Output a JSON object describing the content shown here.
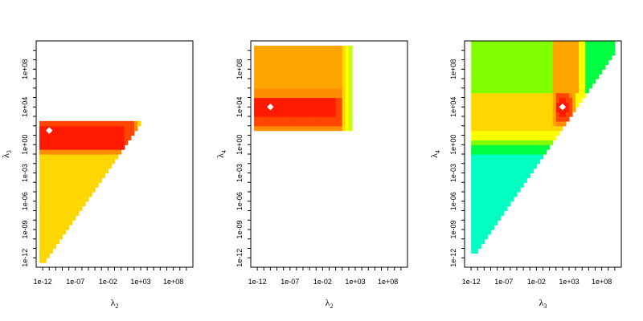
{
  "chart_data": [
    {
      "type": "heatmap",
      "title": "",
      "xlabel": "λ2",
      "ylabel": "λ3",
      "x_scale": "log10",
      "y_scale": "log10",
      "xlim": [
        1e-13,
        100000000000.0
      ],
      "ylim": [
        1e-13,
        100000000000.0
      ],
      "x_ticks": [
        "1e-12",
        "1e-07",
        "1e-02",
        "1e+03",
        "1e+08"
      ],
      "y_ticks": [
        "1e-12",
        "1e-09",
        "1e-06",
        "1e-03",
        "1e+00",
        "1e+04",
        "1e+08"
      ],
      "x_tick_values": [
        1e-12,
        1e-07,
        0.01,
        1000.0,
        100000000.0
      ],
      "y_tick_values": [
        1e-12,
        1e-09,
        1e-06,
        0.001,
        1.0,
        10000.0,
        100000000.0
      ],
      "optimum": {
        "x": 1e-11,
        "y": 31.6
      },
      "optimum_color": "#ffffff",
      "colors": [
        "#ff1a00",
        "#ff4500",
        "#ff8c00",
        "#ffa500",
        "#ffd700",
        "#ffff00",
        "#c8ff00",
        "#80ff00"
      ]
    },
    {
      "type": "heatmap",
      "title": "",
      "xlabel": "λ2",
      "ylabel": "λ4",
      "x_scale": "log10",
      "y_scale": "log10",
      "xlim": [
        1e-13,
        100000000000.0
      ],
      "ylim": [
        1e-13,
        100000000000.0
      ],
      "x_ticks": [
        "1e-12",
        "1e-07",
        "1e-02",
        "1e+03",
        "1e+08"
      ],
      "y_ticks": [
        "1e-12",
        "1e-09",
        "1e-06",
        "1e-03",
        "1e+00",
        "1e+04",
        "1e+08"
      ],
      "x_tick_values": [
        1e-12,
        1e-07,
        0.01,
        1000.0,
        100000000.0
      ],
      "y_tick_values": [
        1e-12,
        1e-09,
        1e-06,
        0.001,
        1.0,
        10000.0,
        100000000.0
      ],
      "optimum": {
        "x": 1e-10,
        "y": 10000.0
      },
      "optimum_color": "#ffffff",
      "colors": [
        "#ff1a00",
        "#ff4500",
        "#ff8c00",
        "#ffa500",
        "#ffd700",
        "#ffff00",
        "#c8ff00",
        "#80ff00"
      ]
    },
    {
      "type": "heatmap",
      "title": "",
      "xlabel": "λ3",
      "ylabel": "λ4",
      "x_scale": "log10",
      "y_scale": "log10",
      "xlim": [
        1e-13,
        100000000000.0
      ],
      "ylim": [
        1e-13,
        100000000000.0
      ],
      "x_ticks": [
        "1e-12",
        "1e-07",
        "1e-02",
        "1e+03",
        "1e+08"
      ],
      "y_ticks": [
        "1e-12",
        "1e-09",
        "1e-06",
        "1e-03",
        "1e+00",
        "1e+04",
        "1e+08"
      ],
      "x_tick_values": [
        1e-12,
        1e-07,
        0.01,
        1000.0,
        100000000.0
      ],
      "y_tick_values": [
        1e-12,
        1e-09,
        1e-06,
        0.001,
        1.0,
        10000.0,
        100000000.0
      ],
      "optimum": {
        "x": 100,
        "y": 10000.0
      },
      "optimum_color": "#ffffff",
      "colors": [
        "#ff1a00",
        "#ff4500",
        "#ff8c00",
        "#ffa500",
        "#ffd700",
        "#ffff00",
        "#80ff00",
        "#00ff40",
        "#00ffc0"
      ]
    }
  ]
}
